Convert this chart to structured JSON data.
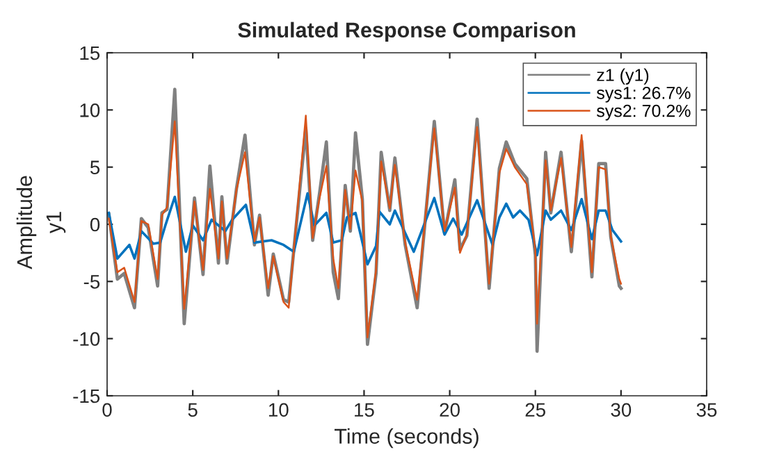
{
  "chart_data": {
    "type": "line",
    "title": "Simulated Response Comparison",
    "xlabel": "Time (seconds)",
    "ylabel": "Amplitude",
    "annotations": [
      "y1"
    ],
    "xlim": [
      0,
      35
    ],
    "xticks": [
      0,
      5,
      10,
      15,
      20,
      25,
      30,
      35
    ],
    "ylim": [
      -15,
      15
    ],
    "yticks": [
      -15,
      -10,
      -5,
      0,
      5,
      10,
      15
    ],
    "grid": false,
    "legend": "top right",
    "line_style": "solid",
    "marker": "none",
    "series": [
      {
        "name": "z1 (y1)",
        "color": "#808080",
        "x": [
          0.1,
          0.6,
          1.0,
          1.6,
          2.0,
          2.4,
          2.95,
          3.2,
          3.5,
          3.95,
          4.5,
          5.1,
          5.6,
          6.0,
          6.5,
          6.7,
          7.0,
          7.55,
          8.05,
          8.6,
          8.9,
          9.4,
          9.7,
          10.3,
          10.6,
          11.6,
          12.0,
          12.4,
          12.8,
          13.2,
          13.5,
          13.9,
          14.2,
          14.5,
          14.9,
          15.2,
          15.7,
          16.0,
          16.5,
          16.8,
          17.4,
          18.1,
          19.1,
          19.7,
          20.3,
          20.6,
          21.0,
          21.6,
          22.3,
          22.9,
          23.3,
          23.8,
          24.5,
          25.0,
          25.1,
          25.6,
          25.9,
          26.5,
          27.1,
          27.7,
          28.3,
          28.7,
          29.1,
          29.4,
          29.9,
          30.0
        ],
        "values": [
          0.9,
          -4.8,
          -4.3,
          -7.3,
          0.5,
          -0.3,
          -5.4,
          1.0,
          1.3,
          11.8,
          -8.7,
          2.3,
          -4.4,
          5.1,
          -3.4,
          2.4,
          -3.4,
          3.1,
          7.8,
          -1.8,
          0.8,
          -6.2,
          -2.6,
          -6.6,
          -6.8,
          8.4,
          -1.4,
          2.7,
          7.2,
          -4.2,
          -6.5,
          3.4,
          -0.6,
          8.0,
          2.2,
          -10.5,
          -4.3,
          6.3,
          1.2,
          5.8,
          -1.8,
          -7.3,
          9.0,
          -0.8,
          3.9,
          -2.2,
          -1.0,
          9.2,
          -5.6,
          4.9,
          7.2,
          5.3,
          4.0,
          -2.7,
          -11.1,
          6.3,
          1.0,
          6.3,
          -2.4,
          7.3,
          -4.6,
          5.3,
          5.3,
          -1.1,
          -5.4,
          -5.6
        ]
      },
      {
        "name": "sys1: 26.7%",
        "color": "#0072bd",
        "x": [
          0.1,
          0.6,
          1.3,
          1.6,
          2.0,
          2.7,
          3.1,
          3.4,
          3.95,
          4.6,
          5.0,
          5.6,
          6.1,
          6.9,
          7.3,
          8.1,
          8.6,
          9.6,
          10.3,
          10.9,
          11.7,
          12.1,
          12.8,
          13.2,
          13.7,
          14.0,
          14.5,
          15.2,
          15.7,
          15.9,
          16.5,
          16.8,
          17.9,
          19.1,
          19.7,
          20.2,
          20.7,
          21.6,
          22.5,
          22.9,
          23.3,
          23.7,
          24.1,
          24.6,
          25.1,
          25.6,
          25.9,
          26.5,
          27.1,
          27.7,
          28.3,
          28.7,
          29.1,
          29.5,
          30.0
        ],
        "values": [
          1.0,
          -3.0,
          -1.8,
          -3.0,
          -0.6,
          -1.7,
          -1.6,
          -0.1,
          2.4,
          -2.4,
          -0.1,
          -1.4,
          0.4,
          -0.6,
          0.4,
          1.7,
          -1.6,
          -1.4,
          -1.8,
          -2.4,
          2.7,
          -0.1,
          1.0,
          -1.6,
          -1.4,
          0.6,
          1.0,
          -3.5,
          -1.9,
          1.1,
          0.0,
          1.2,
          -2.4,
          2.3,
          -0.9,
          0.5,
          -0.9,
          2.1,
          -1.8,
          0.6,
          1.8,
          0.6,
          1.2,
          0.4,
          -2.7,
          1.2,
          0.4,
          1.2,
          -0.5,
          2.2,
          -1.3,
          1.2,
          1.2,
          -0.5,
          -1.5
        ]
      },
      {
        "name": "sys2: 70.2%",
        "color": "#d95319",
        "x": [
          0.1,
          0.6,
          1.0,
          1.6,
          2.0,
          2.4,
          2.95,
          3.2,
          3.5,
          3.95,
          4.5,
          5.1,
          5.6,
          6.0,
          6.5,
          6.7,
          7.0,
          7.55,
          8.05,
          8.6,
          8.9,
          9.4,
          9.7,
          10.3,
          10.6,
          11.6,
          12.0,
          12.4,
          12.8,
          13.2,
          13.5,
          13.9,
          14.2,
          14.5,
          14.9,
          15.2,
          15.7,
          16.0,
          16.5,
          16.8,
          17.4,
          18.1,
          19.1,
          19.7,
          20.3,
          20.6,
          21.0,
          21.6,
          22.3,
          22.9,
          23.3,
          23.8,
          24.5,
          25.0,
          25.1,
          25.6,
          25.9,
          26.5,
          27.1,
          27.7,
          28.3,
          28.7,
          29.1,
          29.4,
          29.9,
          30.0
        ],
        "values": [
          0.5,
          -4.2,
          -3.8,
          -6.8,
          0.3,
          0.0,
          -4.8,
          0.8,
          1.5,
          9.0,
          -7.4,
          2.0,
          -4.0,
          3.1,
          -3.0,
          2.0,
          -3.0,
          3.0,
          6.3,
          -1.5,
          0.6,
          -5.6,
          -2.8,
          -6.8,
          -7.3,
          9.5,
          -1.2,
          2.3,
          5.1,
          -3.0,
          -5.6,
          3.0,
          -0.4,
          4.7,
          2.0,
          -9.9,
          -4.0,
          5.5,
          1.4,
          5.2,
          -1.6,
          -6.6,
          8.4,
          -0.6,
          3.2,
          -2.5,
          -0.9,
          8.5,
          -5.2,
          4.5,
          6.6,
          5.0,
          3.5,
          -2.3,
          -8.7,
          5.6,
          1.2,
          5.8,
          -2.0,
          7.8,
          -4.2,
          5.0,
          4.8,
          -1.0,
          -4.8,
          -5.2
        ]
      }
    ]
  }
}
